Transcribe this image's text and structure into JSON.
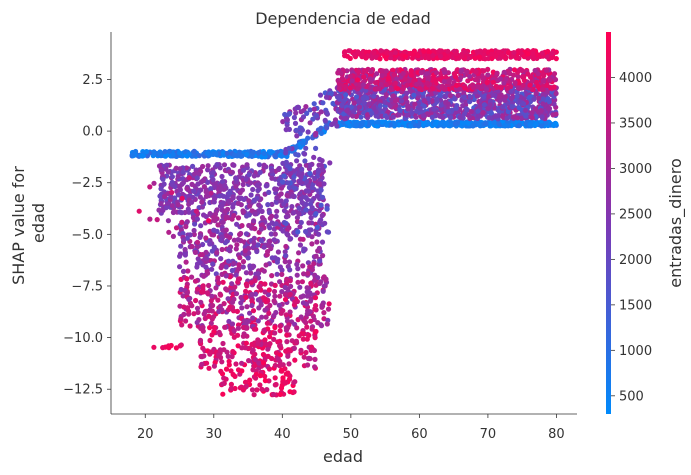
{
  "chart_data": {
    "type": "scatter",
    "title": "Dependencia de edad",
    "xlabel": "edad",
    "ylabel_lines": [
      "SHAP value for",
      "edad"
    ],
    "xlim": [
      15,
      83
    ],
    "ylim": [
      -13.7,
      4.8
    ],
    "xticks": [
      20,
      30,
      40,
      50,
      60,
      70,
      80
    ],
    "yticks": [
      2.5,
      0.0,
      -2.5,
      -5.0,
      -7.5,
      -10.0,
      -12.5
    ],
    "grid": false,
    "colorbar": {
      "label": "entradas_dinero",
      "range": [
        300,
        4500
      ],
      "ticks": [
        500,
        1000,
        1500,
        2000,
        2500,
        3000,
        3500,
        4000
      ],
      "colors": [
        "#008afb",
        "#7d38b4",
        "#ff0052"
      ]
    },
    "segments": [
      {
        "x": [
          18,
          37
        ],
        "y_base": -1.1,
        "y_spread": 0.25,
        "color_range": [
          300,
          1200
        ],
        "density": 1.0
      },
      {
        "x": [
          37,
          41
        ],
        "y_base": -1.1,
        "y_spread": 0.3,
        "color_range": [
          300,
          1500
        ],
        "density": 0.8
      },
      {
        "x": [
          41,
          47
        ],
        "y_base_from": -1.0,
        "y_base_to": 0.3,
        "y_spread": 0.3,
        "color_range": [
          300,
          1500
        ],
        "density": 0.6
      },
      {
        "x": [
          48,
          80
        ],
        "y_base": 0.35,
        "y_spread": 0.2,
        "color_range": [
          300,
          1000
        ],
        "density": 1.2
      },
      {
        "x": [
          40,
          48
        ],
        "y_range_from": [
          -0.5,
          0.8
        ],
        "y_range_to": [
          0.0,
          2.2
        ],
        "color_range": [
          1500,
          3000
        ],
        "density": 0.8
      },
      {
        "x": [
          48,
          80
        ],
        "y_range": [
          0.6,
          2.2
        ],
        "color_range": [
          1500,
          3200
        ],
        "density": 2.5
      },
      {
        "x": [
          48,
          80
        ],
        "y_range": [
          2.0,
          3.0
        ],
        "color_range": [
          2900,
          4300
        ],
        "density": 1.5
      },
      {
        "x": [
          49,
          80
        ],
        "y_range": [
          3.5,
          3.9
        ],
        "color_range": [
          3800,
          4400
        ],
        "density": 0.9
      },
      {
        "x": [
          22,
          46
        ],
        "y_range": [
          -4.0,
          -1.6
        ],
        "color_range": [
          2000,
          3000
        ],
        "density": 1.8
      },
      {
        "x": [
          25,
          46
        ],
        "y_range": [
          -7.0,
          -4.0
        ],
        "color_range": [
          2000,
          3400
        ],
        "density": 1.5
      },
      {
        "x": [
          25,
          47
        ],
        "y_range": [
          -9.5,
          -7.0
        ],
        "color_range": [
          2500,
          4200
        ],
        "density": 1.3
      },
      {
        "x": [
          28,
          45
        ],
        "y_range": [
          -11.5,
          -9.5
        ],
        "color_range": [
          3200,
          4400
        ],
        "density": 1.0
      },
      {
        "x": [
          31,
          42
        ],
        "y_range": [
          -12.8,
          -11.5
        ],
        "color_range": [
          3600,
          4500
        ],
        "density": 0.6
      },
      {
        "x": [
          19,
          30
        ],
        "y_range": [
          -6.0,
          -2.2
        ],
        "color_range": [
          2500,
          4300
        ],
        "density": 0.15
      },
      {
        "x": [
          21,
          26
        ],
        "y_range": [
          -10.5,
          -10.3
        ],
        "color_range": [
          3800,
          4400
        ],
        "density": 0.15
      },
      {
        "x": [
          40,
          47
        ],
        "y_range": [
          -5.0,
          -0.8
        ],
        "color_range": [
          1500,
          2600
        ],
        "density": 0.9
      }
    ]
  }
}
